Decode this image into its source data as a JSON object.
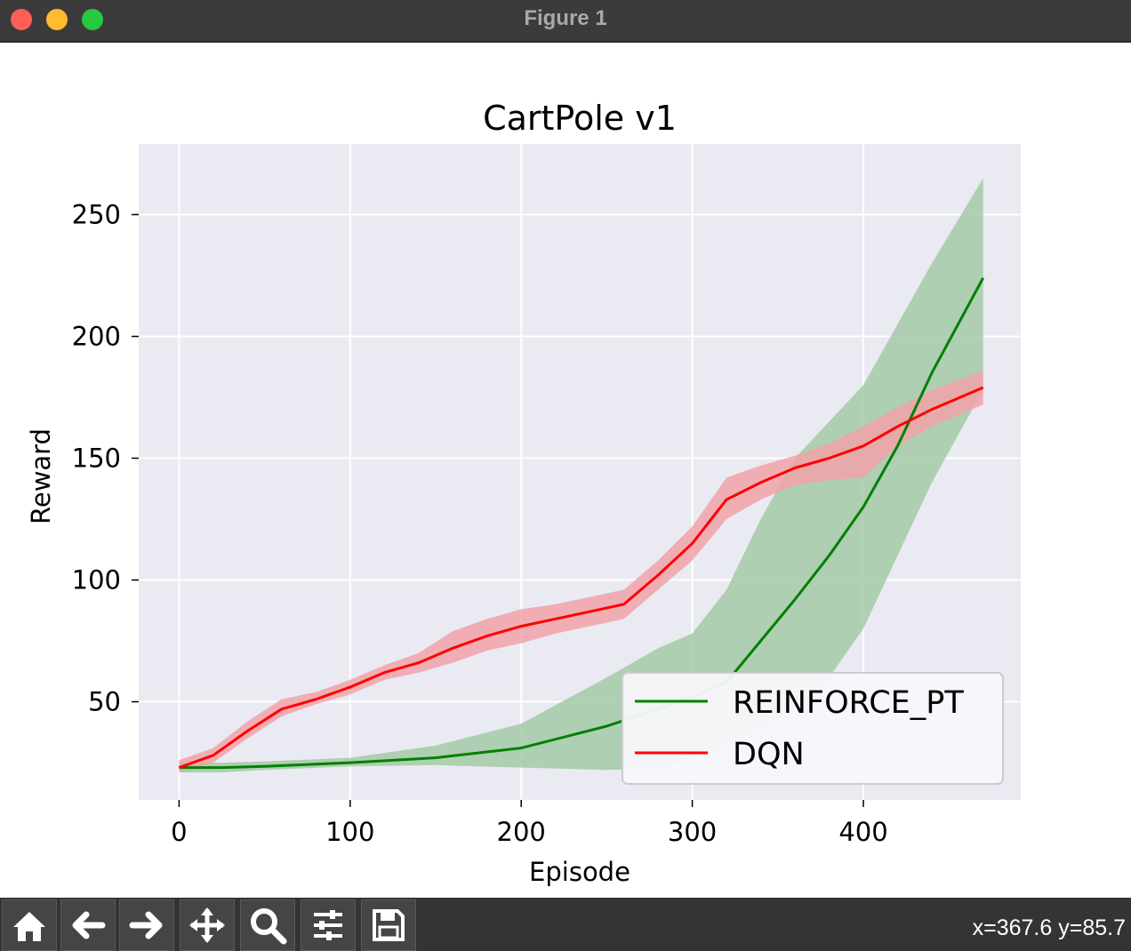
{
  "window": {
    "title": "Figure 1"
  },
  "toolbar": {
    "buttons": [
      {
        "name": "home-icon"
      },
      {
        "name": "back-arrow-icon"
      },
      {
        "name": "forward-arrow-icon"
      },
      {
        "name": "pan-move-icon"
      },
      {
        "name": "zoom-magnifier-icon"
      },
      {
        "name": "configure-subplots-icon"
      },
      {
        "name": "save-floppy-icon"
      }
    ],
    "coords": "x=367.6 y=85.7"
  },
  "colors": {
    "plot_bg": "#eaeaf2",
    "grid": "#ffffff",
    "reinforce_line": "#008000",
    "reinforce_fill": "#a3caa6",
    "dqn_line": "#ff0000",
    "dqn_fill": "#f2a2a9"
  },
  "chart_data": {
    "type": "line",
    "title": "CartPole v1",
    "xlabel": "Episode",
    "ylabel": "Reward",
    "xlim": [
      -23.6,
      492
    ],
    "ylim": [
      9.7,
      279
    ],
    "xticks": [
      0,
      100,
      200,
      300,
      400
    ],
    "yticks": [
      50,
      100,
      150,
      200,
      250
    ],
    "grid": true,
    "legend_position": "lower-right",
    "series": [
      {
        "name": "REINFORCE_PT",
        "color": "#008000",
        "band_color": "#a3caa6",
        "x": [
          0,
          25,
          50,
          100,
          150,
          200,
          250,
          280,
          300,
          320,
          340,
          360,
          380,
          400,
          420,
          440,
          470
        ],
        "y": [
          23,
          23,
          23.5,
          25,
          27,
          31,
          40,
          47,
          52,
          58,
          75,
          92,
          110,
          130,
          155,
          185,
          224
        ],
        "low": [
          21,
          21,
          22,
          23.5,
          24,
          23,
          22,
          22.5,
          27,
          32,
          39,
          48,
          60,
          80,
          110,
          140,
          178
        ],
        "high": [
          25,
          25,
          25.5,
          27,
          32,
          41,
          60,
          72,
          78,
          96,
          125,
          150,
          165,
          180,
          205,
          230,
          265
        ]
      },
      {
        "name": "DQN",
        "color": "#ff0000",
        "band_color": "#f2a2a9",
        "x": [
          0,
          20,
          40,
          60,
          80,
          100,
          120,
          140,
          160,
          180,
          200,
          220,
          240,
          260,
          280,
          300,
          320,
          340,
          360,
          380,
          400,
          420,
          440,
          470
        ],
        "y": [
          23,
          28,
          38,
          47,
          51,
          56,
          62,
          66,
          72,
          77,
          81,
          84,
          87,
          90,
          102,
          115,
          133,
          140,
          146,
          150,
          155,
          163,
          170,
          179
        ],
        "low": [
          21,
          25,
          35,
          44,
          49,
          53,
          59,
          62,
          66,
          71,
          74,
          78,
          81,
          84,
          96,
          108,
          125,
          133,
          139,
          141,
          142,
          155,
          163,
          172
        ],
        "high": [
          26,
          31,
          42,
          51,
          54,
          59,
          65,
          70,
          79,
          84,
          88,
          90,
          93,
          96,
          108,
          122,
          142,
          147,
          151,
          156,
          163,
          171,
          178,
          186
        ]
      }
    ]
  }
}
